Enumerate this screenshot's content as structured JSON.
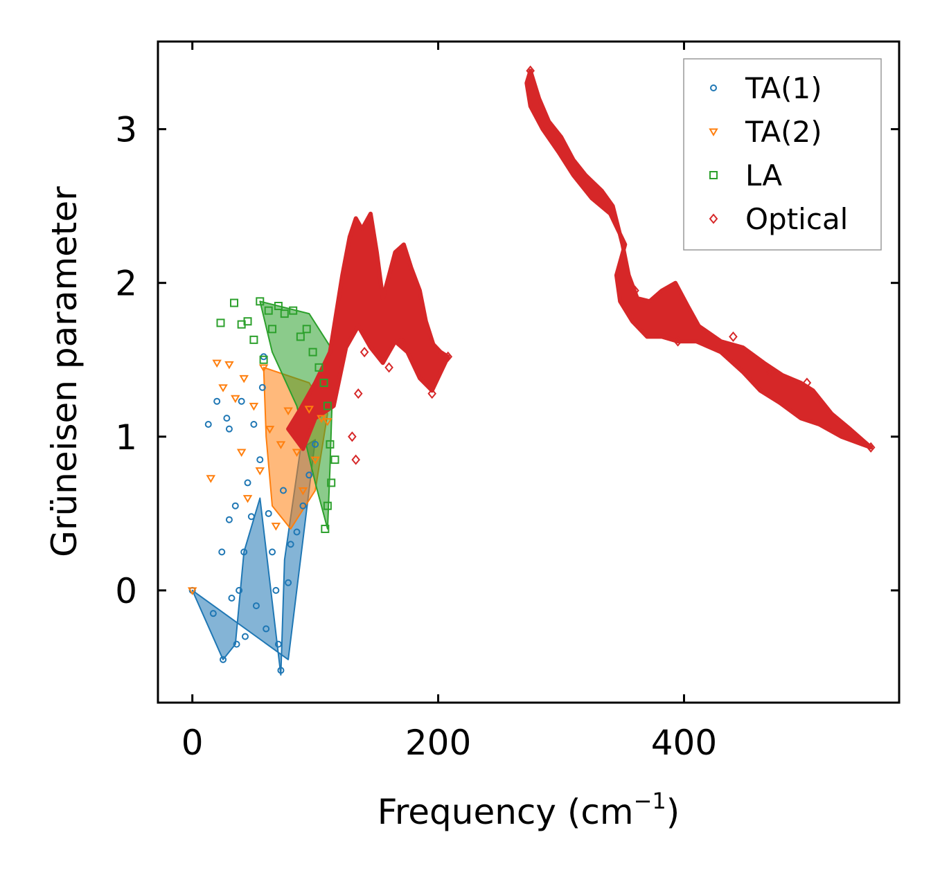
{
  "chart_data": {
    "type": "scatter",
    "title": "",
    "xlabel": "Frequency (cm",
    "xlabel_sup": "−1",
    "xlabel_end": ")",
    "ylabel": "Grüneisen parameter",
    "xlim": [
      -28,
      575
    ],
    "ylim": [
      -0.73,
      3.57
    ],
    "xticks": [
      0,
      200,
      400
    ],
    "xtick_labels": [
      "0",
      "200",
      "400"
    ],
    "yticks": [
      0,
      1,
      2,
      3
    ],
    "ytick_labels": [
      "0",
      "1",
      "2",
      "3"
    ],
    "grid": false,
    "legend_position": "top-right",
    "series": [
      {
        "name": "TA(1)",
        "marker": "circle",
        "color": "#1f77b4",
        "cloud": [
          [
            0,
            0.0
          ],
          [
            25,
            -0.45
          ],
          [
            35,
            -0.35
          ],
          [
            42,
            0.25
          ],
          [
            55,
            0.6
          ],
          [
            72,
            -0.55
          ],
          [
            75,
            0.2
          ],
          [
            88,
            0.92
          ],
          [
            100,
            0.98
          ],
          [
            78,
            -0.45
          ]
        ],
        "points": [
          [
            0,
            0.0
          ],
          [
            13,
            1.08
          ],
          [
            17,
            -0.15
          ],
          [
            20,
            1.23
          ],
          [
            24,
            0.25
          ],
          [
            25,
            -0.45
          ],
          [
            28,
            1.12
          ],
          [
            30,
            1.05
          ],
          [
            30,
            0.46
          ],
          [
            32,
            -0.05
          ],
          [
            35,
            0.55
          ],
          [
            36,
            -0.35
          ],
          [
            38,
            0.0
          ],
          [
            40,
            1.23
          ],
          [
            42,
            0.25
          ],
          [
            43,
            -0.3
          ],
          [
            45,
            0.7
          ],
          [
            48,
            0.48
          ],
          [
            50,
            1.08
          ],
          [
            52,
            -0.1
          ],
          [
            55,
            0.85
          ],
          [
            57,
            1.32
          ],
          [
            58,
            1.52
          ],
          [
            60,
            -0.25
          ],
          [
            62,
            0.5
          ],
          [
            65,
            0.25
          ],
          [
            68,
            0.0
          ],
          [
            70,
            -0.35
          ],
          [
            72,
            -0.52
          ],
          [
            74,
            0.65
          ],
          [
            78,
            0.05
          ],
          [
            80,
            0.3
          ],
          [
            85,
            0.38
          ],
          [
            90,
            0.55
          ],
          [
            95,
            0.75
          ],
          [
            100,
            0.95
          ]
        ]
      },
      {
        "name": "TA(2)",
        "marker": "triangle-down",
        "color": "#ff7f0e",
        "cloud": [
          [
            58,
            1.45
          ],
          [
            95,
            1.35
          ],
          [
            110,
            1.15
          ],
          [
            100,
            0.65
          ],
          [
            80,
            0.4
          ],
          [
            65,
            0.55
          ],
          [
            60,
            1.0
          ]
        ],
        "points": [
          [
            0,
            0.0
          ],
          [
            15,
            0.73
          ],
          [
            20,
            1.48
          ],
          [
            25,
            1.32
          ],
          [
            30,
            1.47
          ],
          [
            35,
            1.25
          ],
          [
            40,
            0.9
          ],
          [
            42,
            1.38
          ],
          [
            45,
            0.6
          ],
          [
            50,
            1.2
          ],
          [
            55,
            0.78
          ],
          [
            58,
            1.45
          ],
          [
            63,
            1.05
          ],
          [
            68,
            0.42
          ],
          [
            72,
            0.95
          ],
          [
            78,
            1.17
          ],
          [
            85,
            0.9
          ],
          [
            90,
            0.65
          ],
          [
            95,
            1.18
          ],
          [
            100,
            0.85
          ],
          [
            105,
            1.12
          ],
          [
            110,
            1.1
          ]
        ]
      },
      {
        "name": "LA",
        "marker": "square",
        "color": "#2ca02c",
        "cloud": [
          [
            55,
            1.88
          ],
          [
            95,
            1.8
          ],
          [
            115,
            1.55
          ],
          [
            112,
            0.8
          ],
          [
            110,
            0.4
          ],
          [
            100,
            0.7
          ],
          [
            85,
            1.2
          ],
          [
            65,
            1.55
          ]
        ],
        "points": [
          [
            23,
            1.74
          ],
          [
            34,
            1.87
          ],
          [
            40,
            1.73
          ],
          [
            45,
            1.75
          ],
          [
            50,
            1.63
          ],
          [
            55,
            1.88
          ],
          [
            58,
            1.5
          ],
          [
            62,
            1.82
          ],
          [
            65,
            1.7
          ],
          [
            70,
            1.85
          ],
          [
            75,
            1.8
          ],
          [
            82,
            1.82
          ],
          [
            88,
            1.65
          ],
          [
            93,
            1.7
          ],
          [
            98,
            1.55
          ],
          [
            103,
            1.45
          ],
          [
            107,
            1.35
          ],
          [
            110,
            1.2
          ],
          [
            112,
            0.95
          ],
          [
            110,
            0.55
          ],
          [
            108,
            0.4
          ],
          [
            113,
            0.7
          ],
          [
            116,
            0.85
          ]
        ]
      },
      {
        "name": "Optical",
        "marker": "diamond",
        "color": "#d62728",
        "path": [
          [
            78,
            1.05
          ],
          [
            88,
            1.18
          ],
          [
            100,
            1.35
          ],
          [
            112,
            1.55
          ],
          [
            118,
            1.85
          ],
          [
            122,
            2.05
          ],
          [
            128,
            2.3
          ],
          [
            133,
            2.42
          ],
          [
            138,
            2.35
          ],
          [
            145,
            2.45
          ],
          [
            150,
            2.2
          ],
          [
            155,
            1.9
          ],
          [
            160,
            2.05
          ],
          [
            165,
            2.2
          ],
          [
            172,
            2.25
          ],
          [
            178,
            2.1
          ],
          [
            185,
            1.95
          ],
          [
            190,
            1.75
          ],
          [
            196,
            1.6
          ],
          [
            202,
            1.55
          ],
          [
            208,
            1.52
          ],
          [
            195,
            1.3
          ],
          [
            185,
            1.38
          ],
          [
            175,
            1.55
          ],
          [
            165,
            1.62
          ],
          [
            155,
            1.48
          ],
          [
            145,
            1.58
          ],
          [
            135,
            1.72
          ],
          [
            125,
            1.58
          ],
          [
            115,
            1.2
          ],
          [
            100,
            1.12
          ],
          [
            90,
            0.92
          ],
          [
            78,
            1.05
          ]
        ],
        "path2": [
          [
            275,
            3.38
          ],
          [
            282,
            3.2
          ],
          [
            290,
            3.05
          ],
          [
            300,
            2.95
          ],
          [
            310,
            2.8
          ],
          [
            320,
            2.7
          ],
          [
            333,
            2.6
          ],
          [
            342,
            2.5
          ],
          [
            350,
            2.25
          ],
          [
            355,
            2.05
          ],
          [
            362,
            1.9
          ],
          [
            372,
            1.88
          ],
          [
            382,
            1.95
          ],
          [
            393,
            2.0
          ],
          [
            403,
            1.85
          ],
          [
            412,
            1.72
          ],
          [
            430,
            1.62
          ],
          [
            448,
            1.58
          ],
          [
            465,
            1.48
          ],
          [
            480,
            1.4
          ],
          [
            495,
            1.35
          ],
          [
            505,
            1.3
          ],
          [
            520,
            1.15
          ],
          [
            535,
            1.05
          ],
          [
            552,
            0.93
          ],
          [
            545,
            0.95
          ],
          [
            528,
            1.0
          ],
          [
            510,
            1.08
          ],
          [
            495,
            1.12
          ],
          [
            478,
            1.22
          ],
          [
            462,
            1.3
          ],
          [
            448,
            1.42
          ],
          [
            430,
            1.55
          ],
          [
            410,
            1.62
          ],
          [
            395,
            1.62
          ],
          [
            382,
            1.65
          ],
          [
            370,
            1.65
          ],
          [
            358,
            1.75
          ],
          [
            348,
            1.88
          ],
          [
            345,
            2.05
          ],
          [
            352,
            2.25
          ],
          [
            340,
            2.45
          ],
          [
            325,
            2.55
          ],
          [
            310,
            2.7
          ],
          [
            298,
            2.85
          ],
          [
            285,
            3.0
          ],
          [
            275,
            3.15
          ],
          [
            272,
            3.3
          ],
          [
            275,
            3.38
          ]
        ],
        "points": [
          [
            130,
            1.0
          ],
          [
            133,
            0.85
          ],
          [
            135,
            1.28
          ],
          [
            140,
            1.55
          ],
          [
            160,
            1.45
          ],
          [
            170,
            1.62
          ],
          [
            195,
            1.28
          ],
          [
            208,
            1.52
          ],
          [
            275,
            3.38
          ],
          [
            360,
            1.95
          ],
          [
            395,
            1.62
          ],
          [
            440,
            1.65
          ],
          [
            470,
            1.42
          ],
          [
            500,
            1.35
          ],
          [
            552,
            0.93
          ]
        ]
      }
    ]
  }
}
